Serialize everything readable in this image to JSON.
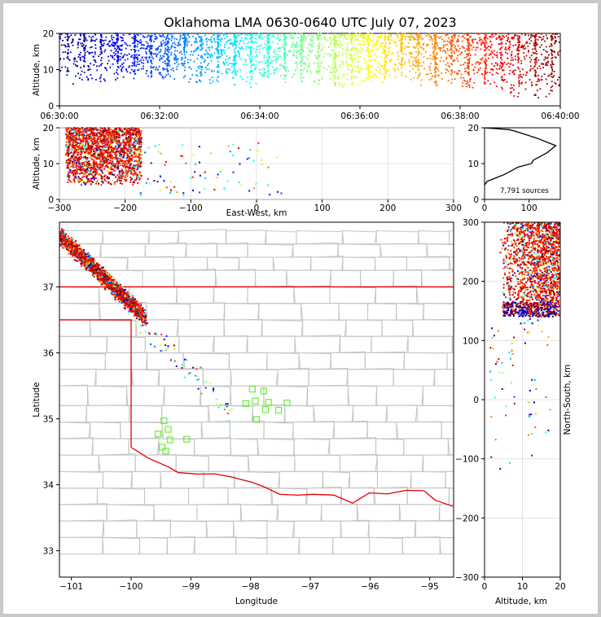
{
  "figure": {
    "background": "#ffffff",
    "border_color": "#c8c8c8"
  },
  "chart_data": [
    {
      "panel": "altitude-time",
      "type": "scatter",
      "title": "Oklahoma LMA 0630-0640 UTC July 07, 2023",
      "xlabel": "",
      "ylabel": "Altitude, km",
      "x_ticks": [
        "06:30:00",
        "06:32:00",
        "06:34:00",
        "06:36:00",
        "06:38:00",
        "06:40:00"
      ],
      "xlim": [
        "06:30:00",
        "06:40:00"
      ],
      "y_ticks": [
        "0",
        "10",
        "20"
      ],
      "ylim": [
        0,
        20
      ],
      "colormap": "jet, colored by time",
      "color_stops": [
        "#00008b",
        "#0000ff",
        "#0080ff",
        "#00ffff",
        "#80ff80",
        "#ffff00",
        "#ff8000",
        "#ff0000",
        "#800000"
      ],
      "density_by_minute": [
        {
          "minute": "06:30",
          "altitude_range": [
            6,
            20
          ],
          "density": "moderate"
        },
        {
          "minute": "06:31",
          "altitude_range": [
            7,
            20
          ],
          "density": "high"
        },
        {
          "minute": "06:32",
          "altitude_range": [
            6,
            20
          ],
          "density": "high"
        },
        {
          "minute": "06:33",
          "altitude_range": [
            5,
            20
          ],
          "density": "high"
        },
        {
          "minute": "06:34",
          "altitude_range": [
            6,
            20
          ],
          "density": "high"
        },
        {
          "minute": "06:35",
          "altitude_range": [
            5,
            20
          ],
          "density": "high"
        },
        {
          "minute": "06:36",
          "altitude_range": [
            6,
            20
          ],
          "density": "high"
        },
        {
          "minute": "06:37",
          "altitude_range": [
            5,
            20
          ],
          "density": "high"
        },
        {
          "minute": "06:38",
          "altitude_range": [
            4,
            20
          ],
          "density": "high"
        },
        {
          "minute": "06:39",
          "altitude_range": [
            2,
            20
          ],
          "density": "high"
        }
      ]
    },
    {
      "panel": "east-west-altitude",
      "type": "scatter",
      "xlabel": "East-West, km",
      "ylabel": "Altitude, km",
      "x_ticks": [
        "−300",
        "−200",
        "−100",
        "0",
        "100",
        "200",
        "300"
      ],
      "xlim": [
        -300,
        300
      ],
      "y_ticks": [
        "0",
        "10",
        "20"
      ],
      "ylim": [
        0,
        20
      ],
      "grid": true,
      "main_cluster": {
        "x_range": [
          -290,
          -175
        ],
        "altitude_range": [
          4,
          20
        ]
      }
    },
    {
      "panel": "altitude-histogram",
      "type": "line",
      "annotation": "7,791 sources",
      "x_ticks": [
        "0",
        "100"
      ],
      "xlim": [
        0,
        170
      ],
      "y_ticks": [
        "0",
        "10",
        "20"
      ],
      "ylim": [
        0,
        20
      ],
      "profile": [
        {
          "alt": 4.0,
          "count": 0
        },
        {
          "alt": 5.0,
          "count": 5
        },
        {
          "alt": 6.0,
          "count": 25
        },
        {
          "alt": 7.0,
          "count": 45
        },
        {
          "alt": 8.0,
          "count": 60
        },
        {
          "alt": 9.0,
          "count": 75
        },
        {
          "alt": 10.0,
          "count": 105
        },
        {
          "alt": 11.0,
          "count": 110
        },
        {
          "alt": 12.0,
          "count": 125
        },
        {
          "alt": 13.0,
          "count": 140
        },
        {
          "alt": 14.0,
          "count": 150
        },
        {
          "alt": 15.0,
          "count": 160
        },
        {
          "alt": 16.0,
          "count": 140
        },
        {
          "alt": 17.0,
          "count": 120
        },
        {
          "alt": 18.0,
          "count": 95
        },
        {
          "alt": 19.0,
          "count": 70
        },
        {
          "alt": 19.5,
          "count": 55
        },
        {
          "alt": 20.0,
          "count": 0
        }
      ]
    },
    {
      "panel": "plan-view",
      "type": "scatter",
      "xlabel": "Longitude",
      "ylabel": "Latitude",
      "x_ticks": [
        "−101",
        "−100",
        "−99",
        "−98",
        "−97",
        "−96",
        "−95"
      ],
      "xlim": [
        -101.2,
        -94.6
      ],
      "y_ticks": [
        "33",
        "34",
        "35",
        "36",
        "37"
      ],
      "ylim": [
        32.6,
        37.98
      ],
      "main_cluster": {
        "lon_range": [
          -101.2,
          -99.8
        ],
        "lat_range": [
          36.5,
          37.9
        ]
      },
      "station_color": "#66ee33",
      "stations": [
        {
          "lon": -99.55,
          "lat": 34.77
        },
        {
          "lon": -99.45,
          "lat": 34.97
        },
        {
          "lon": -99.38,
          "lat": 34.84
        },
        {
          "lon": -99.35,
          "lat": 34.68
        },
        {
          "lon": -99.48,
          "lat": 34.57
        },
        {
          "lon": -99.42,
          "lat": 34.51
        },
        {
          "lon": -99.07,
          "lat": 34.69
        },
        {
          "lon": -97.97,
          "lat": 35.45
        },
        {
          "lon": -98.08,
          "lat": 35.23
        },
        {
          "lon": -97.92,
          "lat": 35.27
        },
        {
          "lon": -97.78,
          "lat": 35.42
        },
        {
          "lon": -97.7,
          "lat": 35.25
        },
        {
          "lon": -97.75,
          "lat": 35.14
        },
        {
          "lon": -97.53,
          "lat": 35.13
        },
        {
          "lon": -97.39,
          "lat": 35.24
        },
        {
          "lon": -97.9,
          "lat": 34.99
        }
      ]
    },
    {
      "panel": "altitude-north-south",
      "type": "scatter",
      "xlabel": "Altitude, km",
      "ylabel": "North-South, km",
      "x_ticks": [
        "0",
        "10",
        "20"
      ],
      "xlim": [
        0,
        20
      ],
      "y_ticks": [
        "−300",
        "−200",
        "−100",
        "0",
        "100",
        "200",
        "300"
      ],
      "ylim": [
        -300,
        300
      ],
      "grid": true,
      "main_cluster": {
        "ns_range": [
          130,
          300
        ],
        "altitude_range": [
          4,
          20
        ]
      }
    }
  ]
}
